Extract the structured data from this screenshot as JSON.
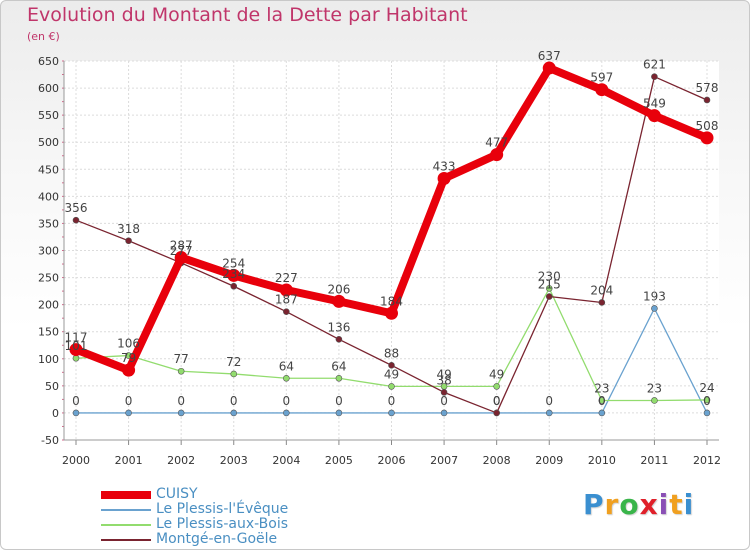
{
  "header": {
    "title": "Evolution du Montant de la Dette par Habitant",
    "unit": "(en €)"
  },
  "logo": {
    "text": "Proxiti",
    "colors": [
      "#3a8fd0",
      "#f0a020",
      "#39b54a",
      "#e0202a",
      "#8a4fb5",
      "#f0a020",
      "#3a8fd0"
    ]
  },
  "chart_data": {
    "type": "line",
    "title": "Evolution du Montant de la Dette par Habitant",
    "ylabel": "(en €)",
    "xlabel": "",
    "x": [
      "2000",
      "2001",
      "2002",
      "2003",
      "2004",
      "2005",
      "2006",
      "2007",
      "2008",
      "2009",
      "2010",
      "2011",
      "2012"
    ],
    "ylim": [
      -50,
      650
    ],
    "yticks": [
      -50,
      0,
      50,
      100,
      150,
      200,
      250,
      300,
      350,
      400,
      450,
      500,
      550,
      600,
      650
    ],
    "grid": true,
    "legend_position": "bottom-left",
    "series": [
      {
        "name": "CUISY",
        "color": "#e8000b",
        "values": [
          117,
          79,
          287,
          254,
          227,
          206,
          184,
          433,
          477,
          637,
          597,
          549,
          508
        ]
      },
      {
        "name": "Le Plessis-l'Évêque",
        "color": "#6aa2cf",
        "values": [
          0,
          0,
          0,
          0,
          0,
          0,
          0,
          0,
          0,
          0,
          0,
          193,
          0
        ]
      },
      {
        "name": "Le Plessis-aux-Bois",
        "color": "#92dc6e",
        "values": [
          101,
          106,
          77,
          72,
          64,
          64,
          49,
          49,
          49,
          230,
          23,
          23,
          24
        ]
      },
      {
        "name": "Montgé-en-Goële",
        "color": "#7a2430",
        "values": [
          356,
          318,
          277,
          234,
          187,
          136,
          88,
          38,
          0,
          215,
          204,
          621,
          578
        ]
      }
    ]
  }
}
